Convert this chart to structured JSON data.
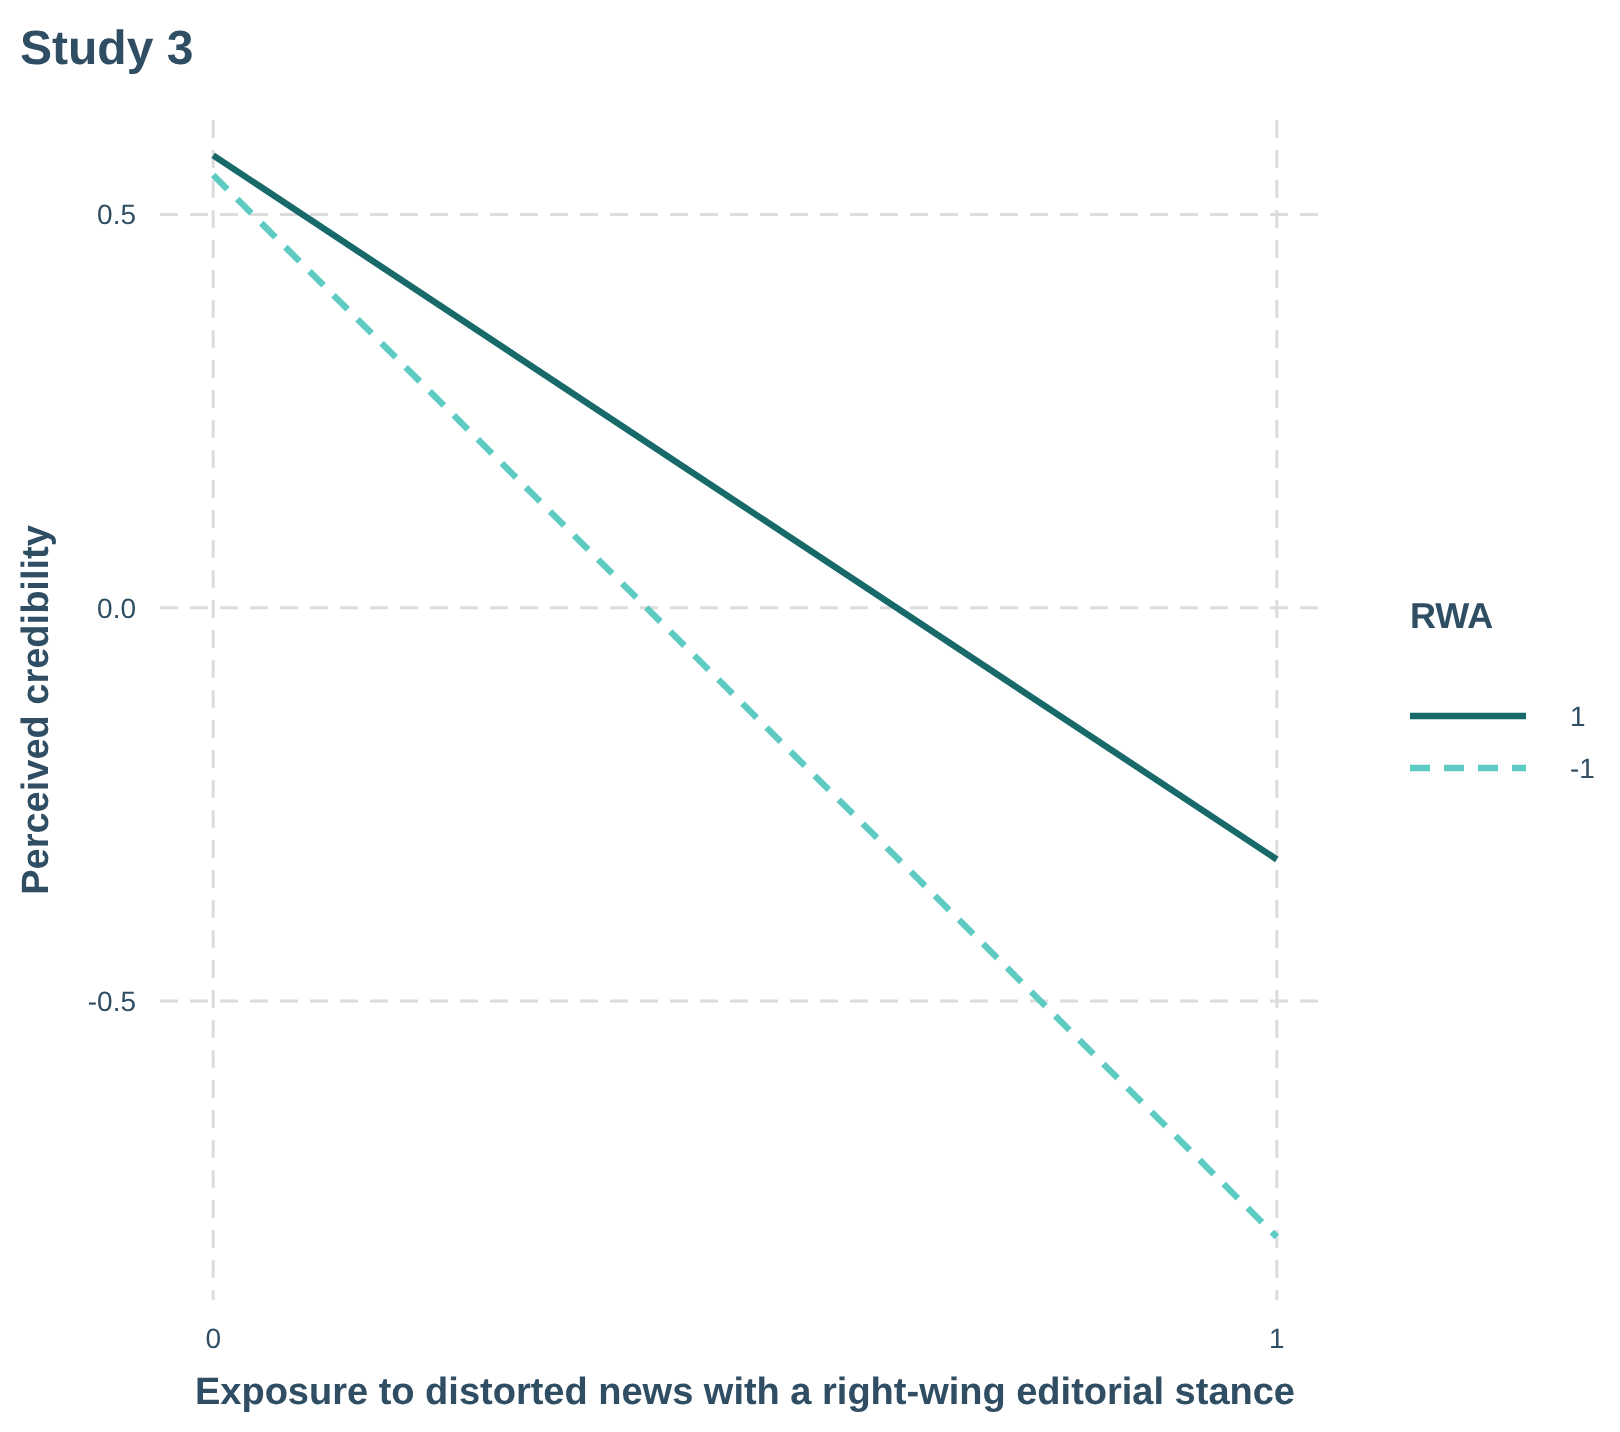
{
  "chart_data": {
    "type": "line",
    "title": "Study 3",
    "xlabel": "Exposure to distorted news with a right-wing editorial stance",
    "ylabel": "Perceived credibility",
    "legend_title": "RWA",
    "x": [
      0,
      1
    ],
    "xlim": [
      -0.05,
      1.05
    ],
    "xticks": [
      0,
      1
    ],
    "ylim": [
      -0.88,
      0.62
    ],
    "yticks": [
      {
        "value": -0.5,
        "label": "-0.5"
      },
      {
        "value": 0,
        "label": "0.0"
      },
      {
        "value": 0.5,
        "label": "0.5"
      }
    ],
    "grid": true,
    "legend": "right",
    "series": [
      {
        "name": "1",
        "color": "#17696a",
        "values": [
          0.575,
          -0.32
        ],
        "line_style": "solid"
      },
      {
        "name": "-1",
        "color": "#5ecbc3",
        "values": [
          0.55,
          -0.8
        ],
        "line_style": "dashed"
      }
    ]
  }
}
